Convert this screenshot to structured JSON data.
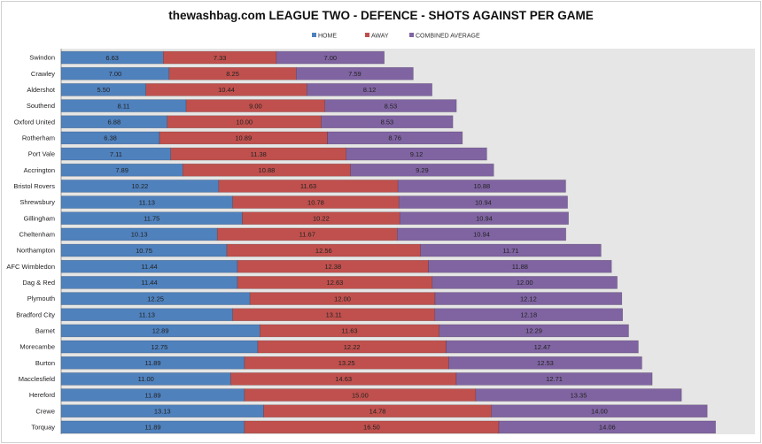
{
  "chart_data": {
    "type": "bar",
    "orientation": "horizontal",
    "stacked": true,
    "title": "thewashbag.com LEAGUE TWO - DEFENCE - SHOTS AGAINST PER GAME",
    "legend_position": "top",
    "xlim": [
      0,
      45
    ],
    "grid": false,
    "categories": [
      "Swindon",
      "Crawley",
      "Aldershot",
      "Southend",
      "Oxford United",
      "Rotherham",
      "Port Vale",
      "Accrington",
      "Bristol Rovers",
      "Shrewsbury",
      "Gillingham",
      "Cheltenham",
      "Northampton",
      "AFC Wimbledon",
      "Dag & Red",
      "Plymouth",
      "Bradford City",
      "Barnet",
      "Morecambe",
      "Burton",
      "Macclesfield",
      "Hereford",
      "Crewe",
      "Torquay"
    ],
    "series": [
      {
        "name": "HOME",
        "color": "#4f81bd",
        "values": [
          6.63,
          7.0,
          5.5,
          8.11,
          6.88,
          6.38,
          7.11,
          7.89,
          10.22,
          11.13,
          11.75,
          10.13,
          10.75,
          11.44,
          11.44,
          12.25,
          11.13,
          12.89,
          12.75,
          11.89,
          11.0,
          11.89,
          13.13,
          11.89
        ]
      },
      {
        "name": "AWAY",
        "color": "#c0504d",
        "values": [
          7.33,
          8.25,
          10.44,
          9.0,
          10.0,
          10.89,
          11.38,
          10.88,
          11.63,
          10.78,
          10.22,
          11.67,
          12.56,
          12.38,
          12.63,
          12.0,
          13.11,
          11.63,
          12.22,
          13.25,
          14.63,
          15.0,
          14.78,
          16.5
        ]
      },
      {
        "name": "COMBINED AVERAGE",
        "color": "#8064a2",
        "values": [
          7.0,
          7.59,
          8.12,
          8.53,
          8.53,
          8.76,
          9.12,
          9.29,
          10.88,
          10.94,
          10.94,
          10.94,
          11.71,
          11.88,
          12.0,
          12.12,
          12.18,
          12.29,
          12.47,
          12.53,
          12.71,
          13.35,
          14.0,
          14.06
        ]
      }
    ],
    "plot_background": "#e6e6e6"
  }
}
